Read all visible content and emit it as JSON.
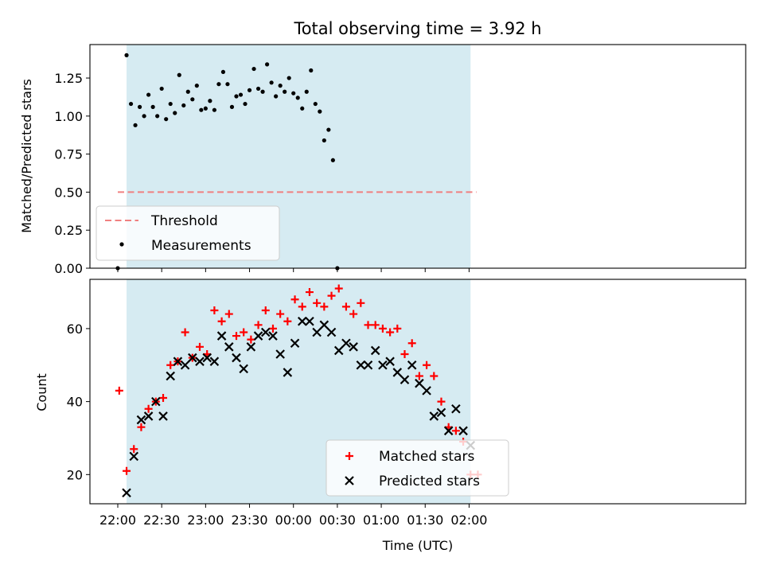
{
  "chart_data": [
    {
      "type": "scatter",
      "title": "Total observing time = 3.92 h",
      "ylabel": "Matched/Predicted stars",
      "xlabel": "",
      "ylim": [
        0,
        1.47
      ],
      "yticks": [
        "0.00",
        "0.25",
        "0.50",
        "0.75",
        "1.00",
        "1.25"
      ],
      "shaded_span": [
        "22:06",
        "02:01"
      ],
      "threshold": {
        "name": "Threshold",
        "value": 0.5,
        "x_range": [
          "22:00",
          "02:05"
        ],
        "color": "#f08080"
      },
      "legend": {
        "location": "lower-left",
        "entries": [
          "Threshold",
          "Measurements"
        ]
      },
      "series": [
        {
          "name": "Measurements",
          "color": "#000000",
          "points": [
            [
              "22:00",
              0.0
            ],
            [
              "22:06",
              1.4
            ],
            [
              "22:09",
              1.08
            ],
            [
              "22:12",
              0.94
            ],
            [
              "22:15",
              1.06
            ],
            [
              "22:18",
              1.0
            ],
            [
              "22:21",
              1.14
            ],
            [
              "22:24",
              1.06
            ],
            [
              "22:27",
              1.0
            ],
            [
              "22:30",
              1.18
            ],
            [
              "22:33",
              0.98
            ],
            [
              "22:36",
              1.08
            ],
            [
              "22:39",
              1.02
            ],
            [
              "22:42",
              1.27
            ],
            [
              "22:45",
              1.07
            ],
            [
              "22:48",
              1.16
            ],
            [
              "22:51",
              1.11
            ],
            [
              "22:54",
              1.2
            ],
            [
              "22:57",
              1.04
            ],
            [
              "23:00",
              1.05
            ],
            [
              "23:03",
              1.1
            ],
            [
              "23:06",
              1.04
            ],
            [
              "23:09",
              1.21
            ],
            [
              "23:12",
              1.29
            ],
            [
              "23:15",
              1.21
            ],
            [
              "23:18",
              1.06
            ],
            [
              "23:21",
              1.13
            ],
            [
              "23:24",
              1.14
            ],
            [
              "23:27",
              1.08
            ],
            [
              "23:30",
              1.17
            ],
            [
              "23:33",
              1.31
            ],
            [
              "23:36",
              1.18
            ],
            [
              "23:39",
              1.16
            ],
            [
              "23:42",
              1.34
            ],
            [
              "23:45",
              1.22
            ],
            [
              "23:48",
              1.13
            ],
            [
              "23:51",
              1.2
            ],
            [
              "23:54",
              1.16
            ],
            [
              "23:57",
              1.25
            ],
            [
              "00:00",
              1.15
            ],
            [
              "00:03",
              1.12
            ],
            [
              "00:06",
              1.05
            ],
            [
              "00:09",
              1.16
            ],
            [
              "00:12",
              1.3
            ],
            [
              "00:15",
              1.08
            ],
            [
              "00:18",
              1.03
            ],
            [
              "00:21",
              0.84
            ],
            [
              "00:24",
              0.91
            ],
            [
              "00:27",
              0.71
            ],
            [
              "00:30",
              0.0
            ]
          ]
        }
      ]
    },
    {
      "type": "scatter",
      "title": "",
      "xlabel": "Time (UTC)",
      "ylabel": "Count",
      "ylim": [
        12,
        73.5
      ],
      "yticks": [
        "20",
        "40",
        "60"
      ],
      "xticks": [
        "22:00",
        "22:30",
        "23:00",
        "23:30",
        "00:00",
        "00:30",
        "01:00",
        "01:30",
        "02:00"
      ],
      "shaded_span": [
        "22:06",
        "02:01"
      ],
      "legend": {
        "location": "bottom-center",
        "entries": [
          "Matched stars",
          "Predicted stars"
        ]
      },
      "series": [
        {
          "name": "Matched stars",
          "marker": "plus",
          "color": "#ff0000",
          "points": [
            [
              "22:01",
              43
            ],
            [
              "22:06",
              21
            ],
            [
              "22:11",
              27
            ],
            [
              "22:16",
              33
            ],
            [
              "22:21",
              38
            ],
            [
              "22:26",
              40
            ],
            [
              "22:31",
              41
            ],
            [
              "22:36",
              50
            ],
            [
              "22:41",
              51
            ],
            [
              "22:46",
              59
            ],
            [
              "22:51",
              52
            ],
            [
              "22:56",
              55
            ],
            [
              "23:01",
              53
            ],
            [
              "23:06",
              65
            ],
            [
              "23:11",
              62
            ],
            [
              "23:16",
              64
            ],
            [
              "23:21",
              58
            ],
            [
              "23:26",
              59
            ],
            [
              "23:31",
              57
            ],
            [
              "23:36",
              61
            ],
            [
              "23:41",
              65
            ],
            [
              "23:46",
              60
            ],
            [
              "23:51",
              64
            ],
            [
              "23:56",
              62
            ],
            [
              "00:01",
              68
            ],
            [
              "00:06",
              66
            ],
            [
              "00:11",
              70
            ],
            [
              "00:16",
              67
            ],
            [
              "00:21",
              66
            ],
            [
              "00:26",
              69
            ],
            [
              "00:31",
              71
            ],
            [
              "00:36",
              66
            ],
            [
              "00:41",
              64
            ],
            [
              "00:46",
              67
            ],
            [
              "00:51",
              61
            ],
            [
              "00:56",
              61
            ],
            [
              "01:01",
              60
            ],
            [
              "01:06",
              59
            ],
            [
              "01:11",
              60
            ],
            [
              "01:16",
              53
            ],
            [
              "01:21",
              56
            ],
            [
              "01:26",
              47
            ],
            [
              "01:31",
              50
            ],
            [
              "01:36",
              47
            ],
            [
              "01:41",
              40
            ],
            [
              "01:46",
              33
            ],
            [
              "01:51",
              32
            ],
            [
              "01:56",
              29
            ],
            [
              "02:01",
              20
            ],
            [
              "02:06",
              20
            ]
          ]
        },
        {
          "name": "Predicted stars",
          "marker": "x",
          "color": "#000000",
          "points": [
            [
              "22:06",
              15
            ],
            [
              "22:11",
              25
            ],
            [
              "22:16",
              35
            ],
            [
              "22:21",
              36
            ],
            [
              "22:26",
              40
            ],
            [
              "22:31",
              36
            ],
            [
              "22:36",
              47
            ],
            [
              "22:41",
              51
            ],
            [
              "22:46",
              50
            ],
            [
              "22:51",
              52
            ],
            [
              "22:56",
              51
            ],
            [
              "23:01",
              52
            ],
            [
              "23:06",
              51
            ],
            [
              "23:11",
              58
            ],
            [
              "23:16",
              55
            ],
            [
              "23:21",
              52
            ],
            [
              "23:26",
              49
            ],
            [
              "23:31",
              55
            ],
            [
              "23:36",
              58
            ],
            [
              "23:41",
              59
            ],
            [
              "23:46",
              58
            ],
            [
              "23:51",
              53
            ],
            [
              "23:56",
              48
            ],
            [
              "00:01",
              56
            ],
            [
              "00:06",
              62
            ],
            [
              "00:11",
              62
            ],
            [
              "00:16",
              59
            ],
            [
              "00:21",
              61
            ],
            [
              "00:26",
              59
            ],
            [
              "00:31",
              54
            ],
            [
              "00:36",
              56
            ],
            [
              "00:41",
              55
            ],
            [
              "00:46",
              50
            ],
            [
              "00:51",
              50
            ],
            [
              "00:56",
              54
            ],
            [
              "01:01",
              50
            ],
            [
              "01:06",
              51
            ],
            [
              "01:11",
              48
            ],
            [
              "01:16",
              46
            ],
            [
              "01:21",
              50
            ],
            [
              "01:26",
              45
            ],
            [
              "01:31",
              43
            ],
            [
              "01:36",
              36
            ],
            [
              "01:41",
              37
            ],
            [
              "01:46",
              32
            ],
            [
              "01:51",
              38
            ],
            [
              "01:56",
              32
            ],
            [
              "02:01",
              28
            ]
          ]
        }
      ]
    }
  ]
}
